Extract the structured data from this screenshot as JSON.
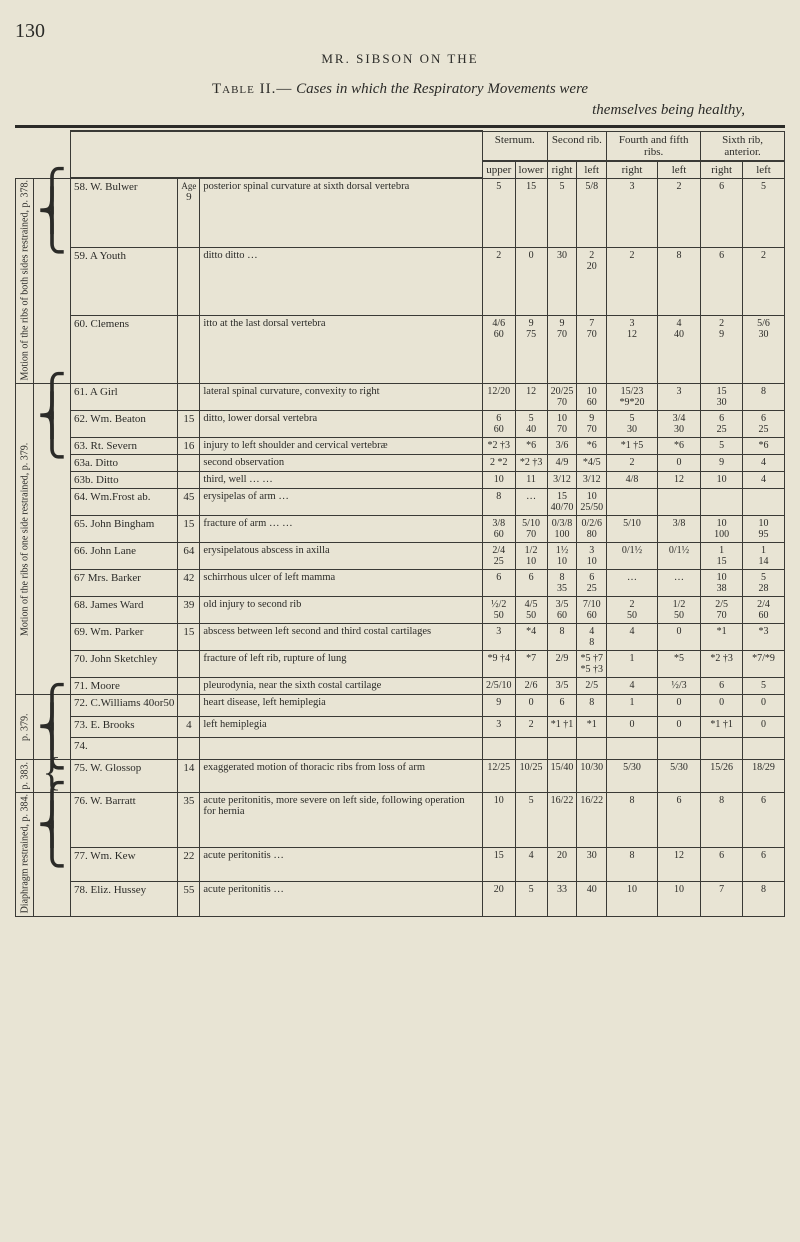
{
  "page_number": "130",
  "running_head": "MR. SIBSON ON THE",
  "table_title_prefix": "Table II.—",
  "table_title_italic": "Cases in which the Respiratory Movements were",
  "table_subtitle": "themselves being healthy,",
  "col_headers": {
    "sternum": "Sternum.",
    "second_rib": "Second rib.",
    "fourth": "Fourth and fifth ribs.",
    "sixth": "Sixth rib, anterior.",
    "upper": "upper",
    "lower": "lower",
    "right": "right",
    "left": "left",
    "age": "Age"
  },
  "side_labels": {
    "g1": "Motion of the ribs of both sides restrained, p. 378.",
    "g2": "Motion of the ribs of one side restrained, p. 379.",
    "g3": "p. 379.",
    "g4": "p. 383.",
    "g5": "Diaphragm restrained, p. 384."
  },
  "rows": [
    {
      "n": "58.",
      "name": "W. Bulwer",
      "age": "9",
      "desc": "posterior spinal curvature at sixth dorsal vertebra",
      "c": [
        "5",
        "15",
        "5",
        "5/8",
        "3",
        "2",
        "6",
        "5"
      ]
    },
    {
      "n": "59.",
      "name": "A Youth",
      "age": "",
      "desc": "ditto            ditto     …",
      "c": [
        "2",
        "0",
        "30",
        "2\n20",
        "2",
        "8",
        "6",
        "2"
      ]
    },
    {
      "n": "60.",
      "name": "Clemens",
      "age": "",
      "desc": "itto at the last dorsal vertebra",
      "c": [
        "4/6\n60",
        "9\n75",
        "9\n70",
        "7\n70",
        "3\n12",
        "4\n40",
        "2\n9",
        "5/6\n30"
      ]
    },
    {
      "n": "61.",
      "name": "A Girl",
      "age": "",
      "desc": "lateral spinal curvature, convexity to right",
      "c": [
        "12/20",
        "12",
        "20/25\n70",
        "10\n60",
        "15/23\n*9*20",
        "3",
        "15\n30",
        "8"
      ]
    },
    {
      "n": "62.",
      "name": "Wm. Beaton",
      "age": "15",
      "desc": "ditto, lower dorsal vertebra",
      "c": [
        "6\n60",
        "5\n40",
        "10\n70",
        "9\n70",
        "5\n30",
        "3/4\n30",
        "6\n25",
        "6\n25"
      ]
    },
    {
      "n": "63.",
      "name": "Rt. Severn",
      "age": "16",
      "desc": "injury to left shoulder and cervical vertebræ",
      "c": [
        "*2 †3",
        "*6",
        "3/6",
        "*6",
        "*1 †5",
        "*6",
        "5",
        "*6"
      ]
    },
    {
      "n": "63a.",
      "name": "Ditto",
      "age": "",
      "desc": "second observation",
      "c": [
        "2 *2",
        "*2 †3",
        "4/9",
        "*4/5",
        "2",
        "0",
        "9",
        "4"
      ]
    },
    {
      "n": "63b.",
      "name": "Ditto",
      "age": "",
      "desc": "third, well        …    …",
      "c": [
        "10",
        "11",
        "3/12",
        "3/12",
        "4/8",
        "12",
        "10",
        "4"
      ]
    },
    {
      "n": "64.",
      "name": "Wm.Frost ab.",
      "age": "45",
      "desc": "erysipelas of arm        …",
      "c": [
        "8",
        "…",
        "15\n40/70",
        "10\n25/50",
        "",
        "",
        "",
        ""
      ]
    },
    {
      "n": "65.",
      "name": "John Bingham",
      "age": "15",
      "desc": "fracture of arm   …    …",
      "c": [
        "3/8\n60",
        "5/10\n70",
        "0/3/8\n100",
        "0/2/6\n80",
        "5/10",
        "3/8",
        "10\n100",
        "10\n95"
      ]
    },
    {
      "n": "66.",
      "name": "John Lane",
      "age": "64",
      "desc": "erysipelatous abscess in axilla",
      "c": [
        "2/4\n25",
        "1/2\n10",
        "1½\n10",
        "3\n10",
        "0/1½",
        "0/1½",
        "1\n15",
        "1\n14"
      ]
    },
    {
      "n": "67",
      "name": "Mrs. Barker",
      "age": "42",
      "desc": "schirrhous ulcer of left mamma",
      "c": [
        "6",
        "6",
        "8\n35",
        "6\n25",
        "…",
        "…",
        "10\n38",
        "5\n28"
      ]
    },
    {
      "n": "68.",
      "name": "James Ward",
      "age": "39",
      "desc": "old injury to second rib",
      "c": [
        "½/2\n50",
        "4/5\n50",
        "3/5\n60",
        "7/10\n60",
        "2\n50",
        "1/2\n50",
        "2/5\n70",
        "2/4\n60"
      ]
    },
    {
      "n": "69.",
      "name": "Wm. Parker",
      "age": "15",
      "desc": "abscess between left second and third costal cartilages",
      "c": [
        "3",
        "*4",
        "8",
        "4\n8",
        "4",
        "0",
        "*1",
        "*3"
      ]
    },
    {
      "n": "70.",
      "name": "John Sketchley",
      "age": "",
      "desc": "fracture of left rib, rupture of lung",
      "c": [
        "*9 †4",
        "*7",
        "2/9",
        "*5 †7\n*5 †3",
        "1",
        "*5",
        "*2 †3",
        "*7/*9"
      ]
    },
    {
      "n": "71.",
      "name": "Moore",
      "age": "",
      "desc": "pleurodynia, near the sixth costal cartilage",
      "c": [
        "2/5/10",
        "2/6",
        "3/5",
        "2/5",
        "4",
        "½/3",
        "6",
        "5"
      ]
    },
    {
      "n": "72.",
      "name": "C.Williams 40or50",
      "age": "",
      "desc": "heart disease, left hemiplegia",
      "c": [
        "9",
        "0",
        "6",
        "8",
        "1",
        "0",
        "0",
        "0"
      ]
    },
    {
      "n": "73.",
      "name": "E. Brooks",
      "age": "4",
      "desc": "left hemiplegia",
      "c": [
        "3",
        "2",
        "*1 †1",
        "*1",
        "0",
        "0",
        "*1 †1",
        "0"
      ]
    },
    {
      "n": "74.",
      "name": "",
      "age": "",
      "desc": "",
      "c": [
        "",
        "",
        "",
        "",
        "",
        "",
        "",
        ""
      ]
    },
    {
      "n": "75.",
      "name": "W. Glossop",
      "age": "14",
      "desc": "exaggerated motion of thoracic ribs from loss of arm",
      "c": [
        "12/25",
        "10/25",
        "15/40",
        "10/30",
        "5/30",
        "5/30",
        "15/26",
        "18/29"
      ]
    },
    {
      "n": "76.",
      "name": "W. Barratt",
      "age": "35",
      "desc": "acute peritonitis, more severe on left side, following operation for hernia",
      "c": [
        "10",
        "5",
        "16/22",
        "16/22",
        "8",
        "6",
        "8",
        "6"
      ]
    },
    {
      "n": "77.",
      "name": "Wm. Kew",
      "age": "22",
      "desc": "acute peritonitis        …",
      "c": [
        "15",
        "4",
        "20",
        "30",
        "8",
        "12",
        "6",
        "6"
      ]
    },
    {
      "n": "78.",
      "name": "Eliz. Hussey",
      "age": "55",
      "desc": "acute peritonitis        …",
      "c": [
        "20",
        "5",
        "33",
        "40",
        "10",
        "10",
        "7",
        "8"
      ]
    }
  ]
}
